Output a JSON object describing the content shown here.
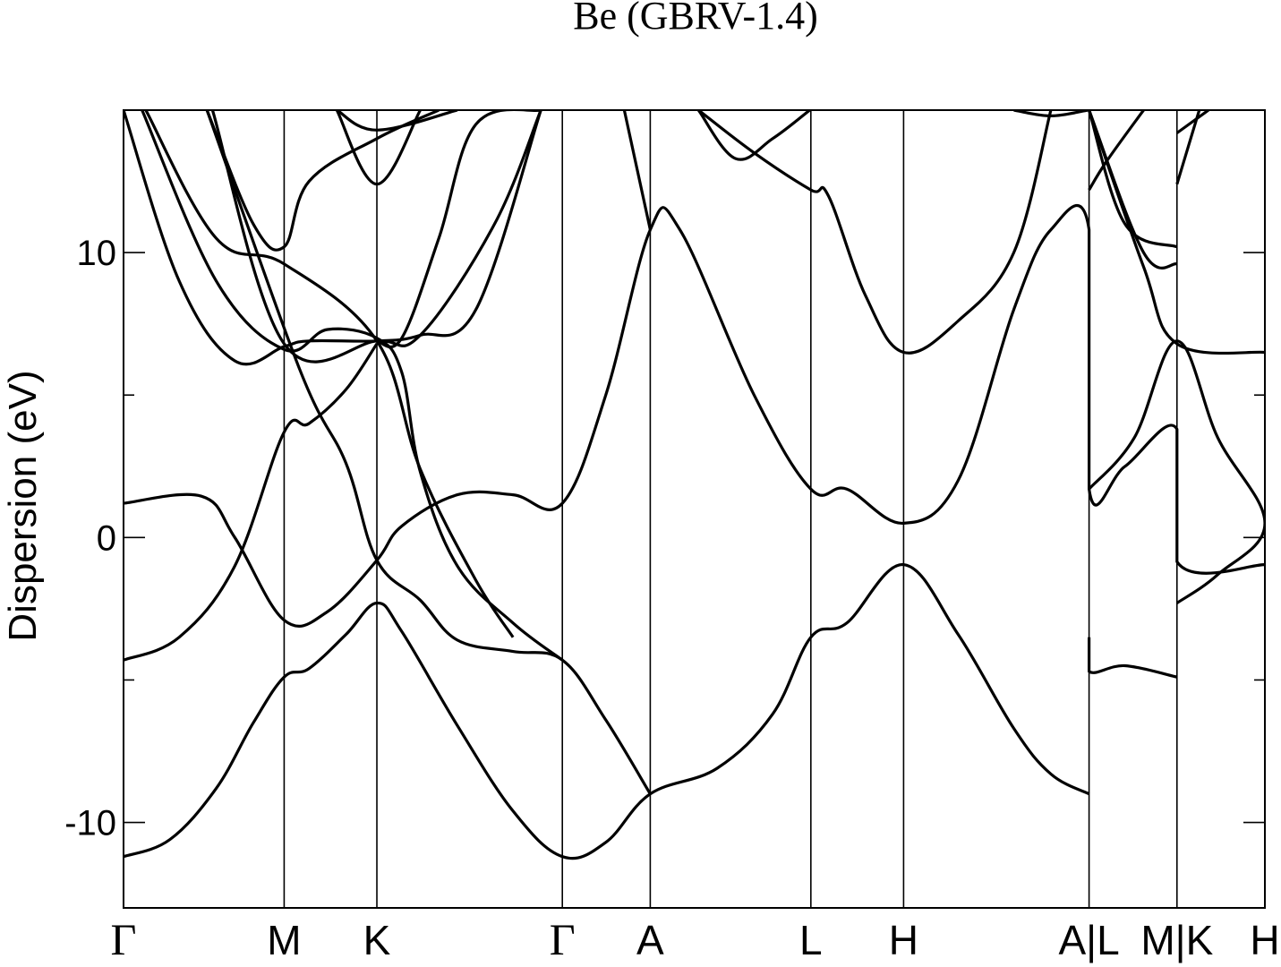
{
  "chart_data": {
    "type": "line",
    "title": "Be (GBRV-1.4)",
    "ylabel": "Dispersion (eV)",
    "xlabel": "",
    "ylim": [
      -13,
      15
    ],
    "yticks": [
      -10,
      0,
      10
    ],
    "yticks_minor": [
      -5,
      5
    ],
    "grid": false,
    "line_color": "#000000",
    "kpoints": [
      {
        "label": "Γ",
        "x": 0
      },
      {
        "label": "M",
        "x": 0.866
      },
      {
        "label": "K",
        "x": 1.366
      },
      {
        "label": "Γ",
        "x": 2.366
      },
      {
        "label": "A",
        "x": 2.84
      },
      {
        "label": "L",
        "x": 3.706
      },
      {
        "label": "H",
        "x": 4.206
      },
      {
        "label": "A|L",
        "x": 5.206
      },
      {
        "label": "M|K",
        "x": 5.68
      },
      {
        "label": "H",
        "x": 6.154
      }
    ],
    "xlim": [
      0,
      6.154
    ],
    "series": [
      {
        "points": [
          [
            0,
            -11.2
          ],
          [
            0.25,
            -10.6
          ],
          [
            0.5,
            -8.8
          ],
          [
            0.7,
            -6.5
          ],
          [
            0.866,
            -4.9
          ],
          [
            1.0,
            -4.6
          ],
          [
            1.2,
            -3.4
          ],
          [
            1.366,
            -2.3
          ],
          [
            1.5,
            -3.3
          ],
          [
            1.8,
            -6.6
          ],
          [
            2.1,
            -9.6
          ],
          [
            2.366,
            -11.2
          ],
          [
            2.6,
            -10.7
          ],
          [
            2.84,
            -9.0
          ],
          [
            3.2,
            -8.1
          ],
          [
            3.5,
            -6.2
          ],
          [
            3.706,
            -3.5
          ],
          [
            3.9,
            -3.0
          ],
          [
            4.206,
            -0.95
          ],
          [
            4.5,
            -3.4
          ],
          [
            4.8,
            -6.7
          ],
          [
            5.0,
            -8.3
          ],
          [
            5.206,
            -9.0
          ]
        ]
      },
      {
        "points": [
          [
            5.206,
            -3.5
          ],
          [
            5.206,
            -4.7
          ],
          [
            5.4,
            -4.5
          ],
          [
            5.68,
            -4.9
          ]
        ]
      },
      {
        "points": [
          [
            0,
            -4.3
          ],
          [
            0.3,
            -3.5
          ],
          [
            0.6,
            -1.0
          ],
          [
            0.866,
            3.7
          ],
          [
            1.0,
            4.0
          ],
          [
            1.2,
            5.2
          ],
          [
            1.366,
            6.8
          ]
        ]
      },
      {
        "points": [
          [
            0,
            1.2
          ],
          [
            0.42,
            1.45
          ],
          [
            0.6,
            0.0
          ],
          [
            0.866,
            -2.9
          ],
          [
            1.1,
            -2.6
          ],
          [
            1.366,
            -0.8
          ],
          [
            1.5,
            0.4
          ],
          [
            1.8,
            1.5
          ],
          [
            2.1,
            1.5
          ],
          [
            2.366,
            1.2
          ],
          [
            2.6,
            5.0
          ],
          [
            2.84,
            10.8
          ],
          [
            3.0,
            10.8
          ],
          [
            3.4,
            5.0
          ],
          [
            3.706,
            1.7
          ],
          [
            3.9,
            1.7
          ],
          [
            4.206,
            0.5
          ],
          [
            4.5,
            2.0
          ],
          [
            4.8,
            8.0
          ],
          [
            5.0,
            10.8
          ],
          [
            5.206,
            10.8
          ],
          [
            5.206,
            1.7
          ],
          [
            5.4,
            2.5
          ],
          [
            5.68,
            3.8
          ],
          [
            5.68,
            -0.85
          ],
          [
            6.154,
            -0.95
          ]
        ]
      },
      {
        "points": [
          [
            0.45,
            15
          ],
          [
            0.95,
            5.9
          ],
          [
            1.2,
            2.6
          ],
          [
            1.366,
            -0.8
          ],
          [
            1.6,
            -2.2
          ],
          [
            1.8,
            -3.6
          ],
          [
            2.1,
            -4.0
          ],
          [
            2.366,
            -4.3
          ],
          [
            2.6,
            -6.4
          ],
          [
            2.84,
            -9.0
          ]
        ]
      },
      {
        "points": [
          [
            0.48,
            15
          ],
          [
            0.866,
            6.8
          ],
          [
            1.366,
            6.9
          ],
          [
            1.6,
            7.1
          ],
          [
            2.0,
            11.0
          ],
          [
            2.25,
            15
          ]
        ]
      },
      {
        "points": [
          [
            0.1,
            15
          ],
          [
            0.5,
            9.0
          ],
          [
            0.866,
            6.6
          ],
          [
            1.1,
            7.3
          ],
          [
            1.366,
            7.0
          ],
          [
            1.5,
            5.8
          ],
          [
            1.6,
            2.3
          ],
          [
            1.8,
            -1.0
          ],
          [
            2.1,
            -3.0
          ],
          [
            2.366,
            -4.3
          ]
        ]
      },
      {
        "points": [
          [
            1.366,
            6.9
          ],
          [
            1.5,
            7.0
          ],
          [
            1.7,
            10.5
          ],
          [
            1.9,
            14.5
          ],
          [
            2.25,
            15
          ]
        ]
      },
      {
        "points": [
          [
            0,
            15
          ],
          [
            0.3,
            9.0
          ],
          [
            0.6,
            6.2
          ],
          [
            0.866,
            6.7
          ],
          [
            1.0,
            6.9
          ],
          [
            1.366,
            6.9
          ],
          [
            1.6,
            7.1
          ],
          [
            1.9,
            8.0
          ],
          [
            2.25,
            15
          ]
        ]
      },
      {
        "points": [
          [
            0.12,
            15
          ],
          [
            0.5,
            10.5
          ],
          [
            0.866,
            9.6
          ],
          [
            1.366,
            6.9
          ],
          [
            1.6,
            2.4
          ],
          [
            1.9,
            -1.5
          ],
          [
            2.1,
            -3.5
          ]
        ]
      },
      {
        "points": [
          [
            0.45,
            15
          ],
          [
            0.7,
            11.0
          ],
          [
            0.866,
            10.2
          ],
          [
            1.0,
            12.5
          ],
          [
            1.366,
            14.0
          ],
          [
            1.7,
            15
          ]
        ]
      },
      {
        "points": [
          [
            1.15,
            15
          ],
          [
            1.366,
            12.4
          ],
          [
            1.6,
            15
          ]
        ]
      },
      {
        "points": [
          [
            1.15,
            15
          ],
          [
            1.366,
            14.3
          ],
          [
            1.8,
            15
          ]
        ]
      },
      {
        "points": [
          [
            2.7,
            15
          ],
          [
            2.84,
            10.8
          ]
        ]
      },
      {
        "points": [
          [
            3.1,
            15
          ],
          [
            3.3,
            13.3
          ],
          [
            3.5,
            14.0
          ],
          [
            3.7,
            15
          ]
        ]
      },
      {
        "points": [
          [
            3.1,
            15
          ],
          [
            3.4,
            13.5
          ],
          [
            3.706,
            12.2
          ],
          [
            3.8,
            12.0
          ],
          [
            4.0,
            8.5
          ],
          [
            4.206,
            6.5
          ],
          [
            4.5,
            7.6
          ],
          [
            4.8,
            10.0
          ],
          [
            5.0,
            15
          ]
        ]
      },
      {
        "points": [
          [
            4.8,
            15
          ],
          [
            5.0,
            14.8
          ],
          [
            5.2,
            15
          ]
        ]
      },
      {
        "points": [
          [
            5.206,
            12.2
          ],
          [
            5.3,
            13.2
          ],
          [
            5.5,
            15
          ]
        ]
      },
      {
        "points": [
          [
            5.206,
            15
          ],
          [
            5.4,
            11.0
          ],
          [
            5.68,
            10.2
          ]
        ]
      },
      {
        "points": [
          [
            5.206,
            15
          ],
          [
            5.5,
            10.0
          ],
          [
            5.68,
            9.6
          ]
        ]
      },
      {
        "points": [
          [
            5.206,
            15
          ],
          [
            5.5,
            9.5
          ],
          [
            5.68,
            6.8
          ],
          [
            6.154,
            6.5
          ]
        ]
      },
      {
        "points": [
          [
            5.206,
            1.7
          ],
          [
            5.45,
            3.5
          ],
          [
            5.68,
            6.9
          ],
          [
            5.9,
            3.5
          ],
          [
            6.154,
            0.5
          ],
          [
            5.9,
            -1.3
          ],
          [
            5.68,
            -2.3
          ]
        ]
      },
      {
        "points": [
          [
            5.68,
            12.4
          ],
          [
            5.8,
            15
          ]
        ]
      },
      {
        "points": [
          [
            5.68,
            14.2
          ],
          [
            5.85,
            15
          ]
        ]
      }
    ]
  }
}
